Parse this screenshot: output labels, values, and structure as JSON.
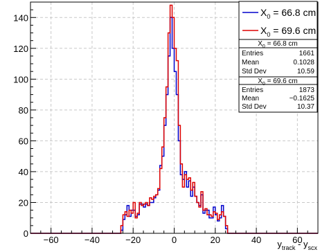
{
  "chart_data": {
    "type": "histogram",
    "xlim": [
      -70,
      70
    ],
    "ylim": [
      0,
      150
    ],
    "x_ticks": [
      -60,
      -40,
      -20,
      0,
      20,
      40,
      60
    ],
    "y_ticks": [
      0,
      20,
      40,
      60,
      80,
      100,
      120,
      140
    ],
    "grid": true,
    "xlabel": {
      "main": "y",
      "sub1": "track",
      "mid": " - y",
      "sub2": "scx"
    },
    "ylabel": "",
    "title": "",
    "legend_placement": "top-right",
    "series": [
      {
        "name_main": "X",
        "name_sub": "0",
        "name_val": " = 66.8 cm",
        "color": "#0000cc",
        "x_edges": [
          -26,
          -25,
          -24,
          -23,
          -22,
          -21,
          -20,
          -19,
          -18,
          -17,
          -16,
          -15,
          -14,
          -13,
          -12,
          -11,
          -10,
          -9,
          -8,
          -7,
          -6,
          -5,
          -4,
          -3,
          -2,
          -1,
          0,
          1,
          2,
          3,
          4,
          5,
          6,
          7,
          8,
          9,
          10,
          11,
          12,
          13,
          14,
          15,
          16,
          17,
          18,
          19,
          20,
          21,
          22,
          23,
          24,
          25,
          26,
          27
        ],
        "values": [
          2,
          9,
          12,
          18,
          11,
          15,
          15,
          11,
          12,
          19,
          19,
          17,
          19,
          18,
          20,
          20,
          23,
          25,
          28,
          44,
          50,
          70,
          90,
          115,
          140,
          120,
          105,
          90,
          60,
          38,
          35,
          40,
          30,
          34,
          24,
          30,
          24,
          20,
          18,
          25,
          13,
          15,
          15,
          10,
          10,
          17,
          12,
          8,
          10,
          18,
          11,
          3,
          0
        ]
      },
      {
        "name_main": "X",
        "name_sub": "0",
        "name_val": " = 69.6 cm",
        "color": "#dd0000",
        "x_edges": [
          -26,
          -25,
          -24,
          -23,
          -22,
          -21,
          -20,
          -19,
          -18,
          -17,
          -16,
          -15,
          -14,
          -13,
          -12,
          -11,
          -10,
          -9,
          -8,
          -7,
          -6,
          -5,
          -4,
          -3,
          -2,
          -1,
          0,
          1,
          2,
          3,
          4,
          5,
          6,
          7,
          8,
          9,
          10,
          11,
          12,
          13,
          14,
          15,
          16,
          17,
          18,
          19,
          20,
          21,
          22,
          23,
          24,
          25,
          26,
          27
        ],
        "values": [
          5,
          12,
          14,
          11,
          15,
          13,
          20,
          10,
          13,
          20,
          18,
          19,
          20,
          18,
          23,
          22,
          24,
          25,
          29,
          42,
          56,
          75,
          95,
          130,
          148,
          140,
          120,
          112,
          70,
          45,
          30,
          38,
          35,
          36,
          28,
          33,
          24,
          20,
          17,
          27,
          15,
          16,
          12,
          12,
          11,
          14,
          13,
          9,
          12,
          14,
          11,
          5,
          0
        ]
      }
    ],
    "stats_boxes": [
      {
        "title_main": "X",
        "title_sub": "0",
        "title_val": " = 66.8 cm",
        "rows": [
          {
            "label": "Entries",
            "value": "1661"
          },
          {
            "label": "Mean",
            "value": "0.1028"
          },
          {
            "label": "Std Dev",
            "value": "10.59"
          }
        ]
      },
      {
        "title_main": "X",
        "title_sub": "0",
        "title_val": " = 69.6 cm",
        "rows": [
          {
            "label": "Entries",
            "value": "1873"
          },
          {
            "label": "Mean",
            "value": "−0.1625"
          },
          {
            "label": "Std Dev",
            "value": "10.37"
          }
        ]
      }
    ]
  }
}
